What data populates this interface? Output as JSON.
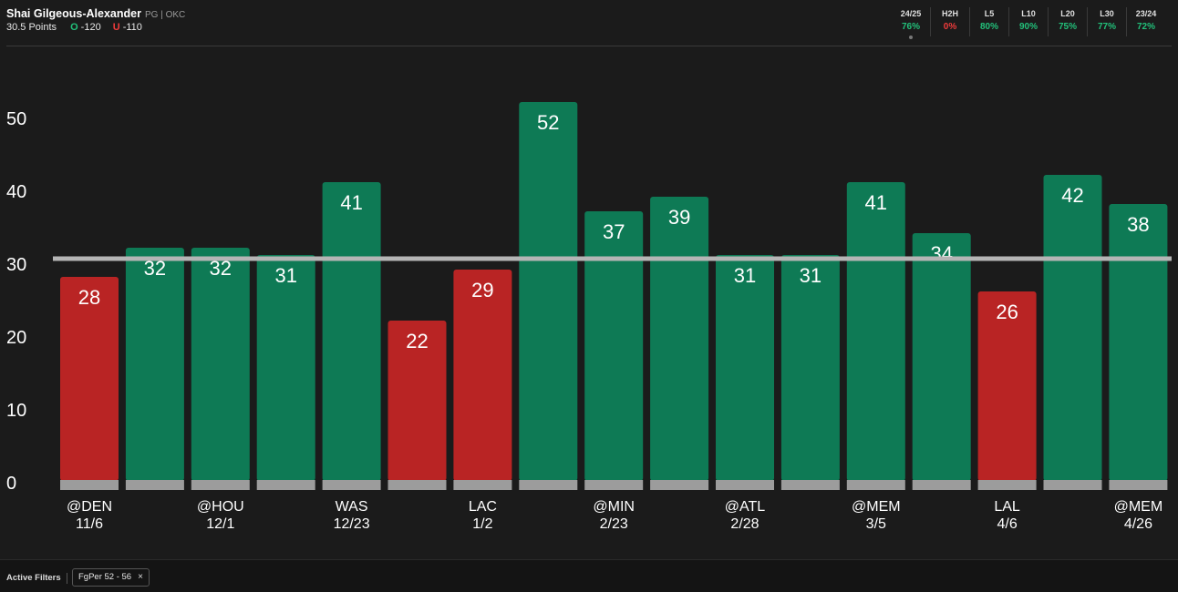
{
  "player": {
    "name": "Shai Gilgeous-Alexander",
    "meta": "PG | OKC"
  },
  "prop": {
    "line_label": "30.5 Points",
    "over_mark": "O",
    "over_odds": "-120",
    "under_mark": "U",
    "under_odds": "-110"
  },
  "stats": [
    {
      "label": "24/25",
      "value": "76%",
      "color": "#22c07a",
      "selected": true
    },
    {
      "label": "H2H",
      "value": "0%",
      "color": "#ef3b3b",
      "selected": false
    },
    {
      "label": "L5",
      "value": "80%",
      "color": "#22c07a",
      "selected": false
    },
    {
      "label": "L10",
      "value": "90%",
      "color": "#22c07a",
      "selected": false
    },
    {
      "label": "L20",
      "value": "75%",
      "color": "#22c07a",
      "selected": false
    },
    {
      "label": "L30",
      "value": "77%",
      "color": "#22c07a",
      "selected": false
    },
    {
      "label": "23/24",
      "value": "72%",
      "color": "#22c07a",
      "selected": false
    }
  ],
  "filters": {
    "label": "Active Filters",
    "chip": "FgPer 52 - 56",
    "chip_close": "×"
  },
  "colors": {
    "over": "#0e7a55",
    "under": "#b92424",
    "line": "#b5b5b5",
    "base": "#9c9c9c"
  },
  "chart_data": {
    "type": "bar",
    "title": "",
    "xlabel": "",
    "ylabel": "",
    "ylim": [
      0,
      50
    ],
    "yticks": [
      0,
      10,
      20,
      30,
      40,
      50
    ],
    "threshold": 30.5,
    "categories": [
      {
        "opp": "@DEN",
        "date": "11/6"
      },
      {
        "opp": "",
        "date": ""
      },
      {
        "opp": "@HOU",
        "date": "12/1"
      },
      {
        "opp": "",
        "date": ""
      },
      {
        "opp": "WAS",
        "date": "12/23"
      },
      {
        "opp": "",
        "date": ""
      },
      {
        "opp": "LAC",
        "date": "1/2"
      },
      {
        "opp": "",
        "date": ""
      },
      {
        "opp": "@MIN",
        "date": "2/23"
      },
      {
        "opp": "",
        "date": ""
      },
      {
        "opp": "@ATL",
        "date": "2/28"
      },
      {
        "opp": "",
        "date": ""
      },
      {
        "opp": "@MEM",
        "date": "3/5"
      },
      {
        "opp": "",
        "date": ""
      },
      {
        "opp": "LAL",
        "date": "4/6"
      },
      {
        "opp": "",
        "date": ""
      },
      {
        "opp": "@MEM",
        "date": "4/26"
      }
    ],
    "values": [
      28,
      32,
      32,
      31,
      41,
      22,
      29,
      52,
      37,
      39,
      31,
      31,
      41,
      34,
      26,
      42,
      38
    ]
  }
}
